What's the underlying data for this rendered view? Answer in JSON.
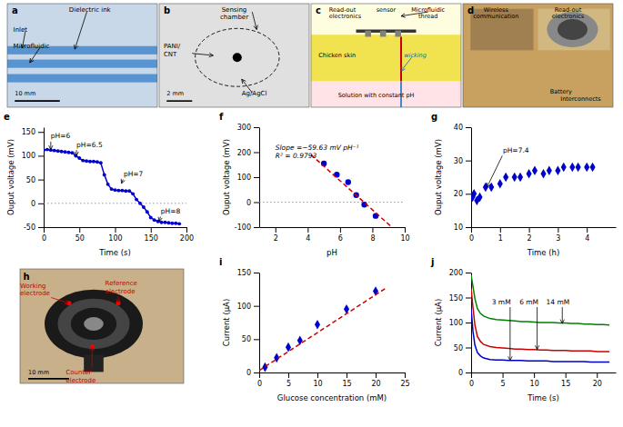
{
  "chart_data": [
    {
      "type": "diagram",
      "title": "a",
      "annotations": [
        {
          "text": "Dielectric ink"
        },
        {
          "text": "Inlet"
        },
        {
          "text": "Microfluidic"
        },
        {
          "text": "10 mm"
        }
      ]
    },
    {
      "type": "diagram",
      "title": "b",
      "annotations": [
        {
          "text": "Sensing\nchamber"
        },
        {
          "text": "PANI/\nCNT"
        },
        {
          "text": "Ag/AgCl"
        },
        {
          "text": "2 mm"
        }
      ]
    },
    {
      "type": "diagram",
      "title": "c",
      "annotations": [
        {
          "text": "Read-out\nelectronics"
        },
        {
          "text": "sensor"
        },
        {
          "text": "Microfluidic\nthread"
        },
        {
          "text": "Chicken skin"
        },
        {
          "text": "wicking",
          "color": "#0066cc"
        },
        {
          "text": "Solution with constant pH"
        }
      ]
    },
    {
      "type": "diagram",
      "title": "d",
      "annotations": [
        {
          "text": "Wireless\ncommunication"
        },
        {
          "text": "Read-out\nelectronics"
        },
        {
          "text": "Battery"
        },
        {
          "text": "Interconnects"
        }
      ]
    },
    {
      "type": "line",
      "title": "e",
      "xlabel": "Time (s)",
      "ylabel": "Ouput voltage (mV)",
      "xlim": [
        0,
        200
      ],
      "ylim": [
        -50,
        160
      ],
      "xticks": [
        0,
        50,
        100,
        150,
        200
      ],
      "yticks": [
        -50,
        0,
        50,
        100,
        150
      ],
      "grid": false,
      "series": [
        {
          "color": "#0000cc",
          "marker": "circle",
          "line_style": "solid",
          "x": [
            0,
            5,
            10,
            15,
            20,
            25,
            30,
            35,
            40,
            45,
            50,
            55,
            60,
            65,
            70,
            75,
            80,
            85,
            90,
            95,
            100,
            105,
            110,
            115,
            120,
            125,
            130,
            135,
            140,
            145,
            150,
            155,
            160,
            165,
            170,
            175,
            180,
            185,
            190
          ],
          "values": [
            112,
            113,
            112,
            111,
            110,
            109,
            108,
            107,
            106,
            100,
            95,
            90,
            89,
            88,
            88,
            87,
            85,
            60,
            40,
            30,
            28,
            27,
            27,
            26,
            26,
            20,
            8,
            0,
            -8,
            -18,
            -30,
            -35,
            -38,
            -40,
            -40,
            -41,
            -42,
            -42,
            -43
          ]
        }
      ],
      "hline": {
        "y": 0,
        "color": "gray",
        "line_style": "dotted"
      },
      "annotations": [
        {
          "text": "pH=6",
          "x": 10,
          "y": 148,
          "arrow_x": 10,
          "arrow_y": 113
        },
        {
          "text": "pH=6.5",
          "x": 46,
          "y": 130,
          "arrow_x": 46,
          "arrow_y": 100
        },
        {
          "text": "pH=7",
          "x": 112,
          "y": 68,
          "arrow_x": 109,
          "arrow_y": 42
        },
        {
          "text": "pH=8",
          "x": 164,
          "y": -10,
          "arrow_x": 162,
          "arrow_y": -38
        }
      ]
    },
    {
      "type": "scatter",
      "title": "f",
      "xlabel": "pH",
      "ylabel": "Ouput voltage (mV)",
      "xlim": [
        1,
        10
      ],
      "ylim": [
        -100,
        300
      ],
      "xticks": [
        2,
        4,
        6,
        8,
        10
      ],
      "yticks": [
        -100,
        0,
        100,
        200,
        300
      ],
      "grid": false,
      "series": [
        {
          "type": "scatter",
          "color": "#0000cc",
          "marker": "circle",
          "x": [
            5.0,
            5.8,
            6.5,
            7.0,
            7.5,
            8.2
          ],
          "values": [
            155,
            110,
            80,
            28,
            -10,
            -55
          ]
        },
        {
          "type": "line",
          "color": "#cc0000",
          "line_style": "dashed",
          "x": [
            4.2,
            9.2
          ],
          "values": [
            190,
            -100
          ]
        }
      ],
      "hline": {
        "y": 0,
        "color": "gray",
        "line_style": "dotted"
      },
      "annotations": [
        {
          "text": "Slope =−59.63 mV pH⁻¹\nR² = 0.9793",
          "x": 2.0,
          "y": 230
        }
      ]
    },
    {
      "type": "scatter",
      "title": "g",
      "xlabel": "Time (h)",
      "ylabel": "Ouput voltage (mV)",
      "xlim": [
        0,
        5
      ],
      "ylim": [
        10,
        40
      ],
      "xticks": [
        0,
        1,
        2,
        3,
        4
      ],
      "yticks": [
        10,
        20,
        30,
        40
      ],
      "grid": false,
      "series": [
        {
          "color": "#0000cc",
          "marker": "diamond",
          "x": [
            0.05,
            0.1,
            0.2,
            0.3,
            0.5,
            0.7,
            1.0,
            1.2,
            1.5,
            1.7,
            2.0,
            2.2,
            2.5,
            2.7,
            3.0,
            3.2,
            3.5,
            3.7,
            4.0,
            4.2
          ],
          "values": [
            19,
            20,
            18,
            19,
            22,
            22,
            23,
            25,
            25,
            25,
            26,
            27,
            26,
            27,
            27,
            28,
            28,
            28,
            28,
            28
          ]
        }
      ],
      "annotations": [
        {
          "text": "pH=7.4",
          "x": 1.1,
          "y": 34,
          "arrow_x": 0.55,
          "arrow_y": 22
        }
      ]
    },
    {
      "type": "diagram",
      "title": "h",
      "annotations": [
        {
          "text": "Working\nelectrode",
          "color": "#cc0000"
        },
        {
          "text": "Reference\nelectrode",
          "color": "#cc0000"
        },
        {
          "text": "Counter\nelectrode",
          "color": "#cc0000"
        },
        {
          "text": "10 mm"
        }
      ]
    },
    {
      "type": "scatter",
      "title": "i",
      "xlabel": "Glucose concentration (mM)",
      "ylabel": "Current (μA)",
      "xlim": [
        0,
        25
      ],
      "ylim": [
        0,
        150
      ],
      "xticks": [
        0,
        5,
        10,
        15,
        20,
        25
      ],
      "yticks": [
        0,
        50,
        100,
        150
      ],
      "grid": false,
      "series": [
        {
          "type": "scatter",
          "color": "#0000cc",
          "marker": "diamond",
          "x": [
            1,
            3,
            5,
            7,
            10,
            15,
            20
          ],
          "values": [
            8,
            22,
            38,
            48,
            72,
            95,
            122
          ]
        },
        {
          "type": "line",
          "color": "#cc0000",
          "line_style": "dashed",
          "x": [
            0,
            22
          ],
          "values": [
            3,
            128
          ]
        }
      ]
    },
    {
      "type": "line",
      "title": "j",
      "xlabel": "Time (s)",
      "ylabel": "Current (μA)",
      "xlim": [
        0,
        23
      ],
      "ylim": [
        0,
        200
      ],
      "xticks": [
        0,
        5,
        10,
        15,
        20
      ],
      "yticks": [
        0,
        50,
        100,
        150,
        200
      ],
      "grid": false,
      "series": [
        {
          "color": "#008000",
          "x": [
            0,
            0.3,
            0.6,
            1,
            1.5,
            2,
            3,
            4,
            5,
            6,
            7,
            8,
            9,
            10,
            11,
            12,
            13,
            14,
            15,
            16,
            17,
            18,
            19,
            20,
            21,
            22
          ],
          "values": [
            195,
            172,
            148,
            128,
            118,
            113,
            108,
            106,
            105,
            104,
            103,
            102,
            102,
            101,
            100,
            100,
            100,
            99,
            99,
            98,
            98,
            97,
            97,
            96,
            96,
            95
          ]
        },
        {
          "color": "#cc0000",
          "x": [
            0,
            0.3,
            0.6,
            1,
            1.5,
            2,
            3,
            4,
            5,
            6,
            7,
            8,
            9,
            10,
            11,
            12,
            13,
            14,
            15,
            16,
            17,
            18,
            19,
            20,
            21,
            22
          ],
          "values": [
            168,
            130,
            95,
            72,
            62,
            56,
            52,
            50,
            49,
            48,
            47,
            47,
            46,
            46,
            45,
            45,
            44,
            44,
            44,
            43,
            43,
            43,
            43,
            42,
            42,
            42
          ]
        },
        {
          "color": "#0000cc",
          "x": [
            0,
            0.3,
            0.6,
            1,
            1.5,
            2,
            3,
            4,
            5,
            6,
            7,
            8,
            9,
            10,
            11,
            12,
            13,
            14,
            15,
            16,
            17,
            18,
            19,
            20,
            21,
            22
          ],
          "values": [
            128,
            82,
            55,
            40,
            33,
            29,
            26,
            25,
            25,
            24,
            24,
            24,
            23,
            23,
            23,
            23,
            22,
            22,
            22,
            22,
            22,
            22,
            21,
            21,
            21,
            21
          ]
        }
      ],
      "annotations": [
        {
          "text": "3 mM",
          "x": 4.8,
          "y": 148,
          "arrow_x": 6.2,
          "arrow_y": 24
        },
        {
          "text": "6 mM",
          "x": 9.2,
          "y": 148,
          "arrow_x": 10.5,
          "arrow_y": 46
        },
        {
          "text": "14 mM",
          "x": 13.8,
          "y": 148,
          "arrow_x": 14.5,
          "arrow_y": 98
        }
      ]
    }
  ]
}
